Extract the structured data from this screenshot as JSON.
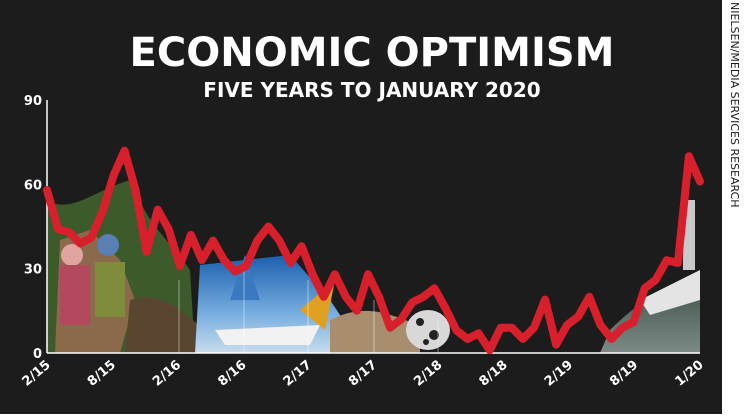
{
  "chart_data": {
    "type": "line",
    "title": "ECONOMIC OPTIMISM",
    "subtitle": "FIVE YEARS TO JANUARY 2020",
    "source": "NIELSEN/MEDIA SERVICES RESEARCH",
    "ylim": [
      0,
      90
    ],
    "yticks": [
      "0",
      "30",
      "60",
      "90"
    ],
    "xtick_labels": [
      "2/15",
      "8/15",
      "2/16",
      "8/16",
      "2/17",
      "8/17",
      "2/18",
      "8/18",
      "2/19",
      "8/19",
      "1/20"
    ],
    "series": [
      {
        "values": [
          58,
          44,
          43,
          39,
          41,
          50,
          63,
          72,
          58,
          36,
          51,
          44,
          31,
          42,
          33,
          40,
          33,
          29,
          31,
          40,
          45,
          40,
          32,
          38,
          28,
          20,
          28,
          20,
          15,
          28,
          20,
          9,
          12,
          18,
          20,
          23,
          16,
          8,
          5,
          7,
          1,
          9,
          9,
          5,
          9,
          19,
          3,
          10,
          13,
          20,
          10,
          5,
          9,
          11,
          23,
          26,
          33,
          32,
          70,
          61
        ]
      }
    ],
    "colors": {
      "line": "#d8202c",
      "background": "#1c1c1c",
      "text": "#ffffff"
    }
  }
}
